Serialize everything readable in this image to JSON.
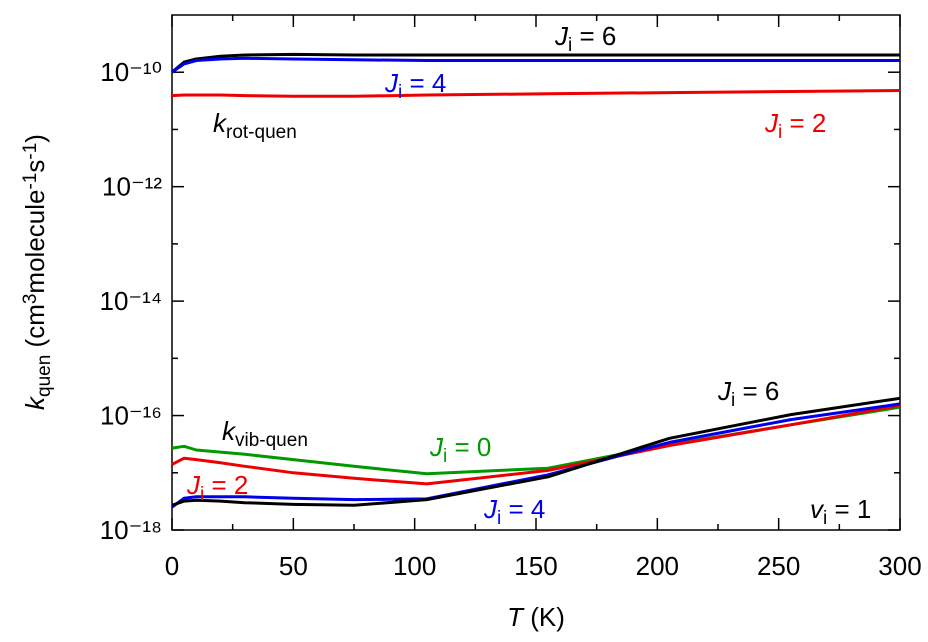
{
  "chart_data": {
    "type": "line",
    "x_label": [
      {
        "text": "T",
        "style": "italic"
      },
      {
        "text": " (K)",
        "style": "normal"
      }
    ],
    "y_label": [
      {
        "text": "k",
        "style": "italic"
      },
      {
        "text": "quen",
        "style": "sub"
      },
      {
        "text": " (cm",
        "style": "normal"
      },
      {
        "text": "3",
        "style": "sup"
      },
      {
        "text": "molecule",
        "style": "normal"
      },
      {
        "text": "-1",
        "style": "sup"
      },
      {
        "text": "s",
        "style": "normal"
      },
      {
        "text": "-1",
        "style": "sup"
      },
      {
        "text": ")",
        "style": "normal"
      }
    ],
    "x": [
      0,
      5,
      10,
      20,
      30,
      50,
      75,
      105,
      155,
      205,
      255,
      300
    ],
    "series": [
      {
        "color": "#000000",
        "values": [
          1e-10,
          1.5e-10,
          1.7e-10,
          1.9e-10,
          2e-10,
          2.05e-10,
          2e-10,
          2e-10,
          2e-10,
          2e-10,
          2e-10,
          2e-10
        ]
      },
      {
        "color": "#0000ee",
        "values": [
          1e-10,
          1.4e-10,
          1.6e-10,
          1.7e-10,
          1.75e-10,
          1.7e-10,
          1.65e-10,
          1.6e-10,
          1.6e-10,
          1.6e-10,
          1.6e-10,
          1.6e-10
        ]
      },
      {
        "color": "#ee0000",
        "values": [
          3.9e-11,
          4e-11,
          4e-11,
          4e-11,
          3.9e-11,
          3.8e-11,
          3.8e-11,
          4e-11,
          4.2e-11,
          4.4e-11,
          4.6e-11,
          4.8e-11
        ]
      },
      {
        "color": "#009900",
        "values": [
          2.7e-17,
          2.9e-17,
          2.5e-17,
          2.3e-17,
          2.1e-17,
          1.7e-17,
          1.3e-17,
          9.6e-18,
          1.2e-17,
          3.1e-17,
          6.9e-17,
          1.4e-16
        ]
      },
      {
        "color": "#ee0000",
        "values": [
          1.4e-17,
          1.8e-17,
          1.7e-17,
          1.5e-17,
          1.3e-17,
          1e-17,
          8e-18,
          6.4e-18,
          1.1e-17,
          3e-17,
          6.9e-17,
          1.5e-16
        ]
      },
      {
        "color": "#0000ee",
        "values": [
          2.5e-18,
          3.6e-18,
          3.8e-18,
          3.8e-18,
          3.8e-18,
          3.6e-18,
          3.4e-18,
          3.5e-18,
          9.2e-18,
          3.4e-17,
          8.5e-17,
          1.6e-16
        ]
      },
      {
        "color": "#000000",
        "values": [
          2.7e-18,
          3.2e-18,
          3.3e-18,
          3.2e-18,
          3e-18,
          2.8e-18,
          2.7e-18,
          3.4e-18,
          8.5e-18,
          4e-17,
          1.04e-16,
          2e-16
        ]
      }
    ],
    "xlim": [
      0,
      300
    ],
    "xticks": [
      0,
      50,
      100,
      150,
      200,
      250,
      300
    ],
    "minor_xticks": [
      25,
      75,
      125,
      175,
      225,
      275
    ],
    "ylim": [
      1e-18,
      1e-09
    ],
    "log_y": true,
    "yticks": [
      {
        "value": 1e-18,
        "label": "10⁻¹⁸"
      },
      {
        "value": 1e-16,
        "label": "10⁻¹⁶"
      },
      {
        "value": 1e-14,
        "label": "10⁻¹⁴"
      },
      {
        "value": 1e-12,
        "label": "10⁻¹²"
      },
      {
        "value": 1e-10,
        "label": "10⁻¹⁰"
      }
    ],
    "minor_yticks": [
      1e-17,
      1e-15,
      1e-13,
      1e-11
    ],
    "annotations": [
      {
        "parts": [
          "J",
          "i",
          " = 6"
        ],
        "color": "#000000"
      },
      {
        "parts": [
          "J",
          "i",
          " = 4"
        ],
        "color": "#0000ee"
      },
      {
        "parts": [
          "k",
          "rot-quen",
          ""
        ],
        "color": "#000000"
      },
      {
        "parts": [
          "J",
          "i",
          " = 2"
        ],
        "color": "#ee0000"
      },
      {
        "parts": [
          "k",
          "vib-quen",
          ""
        ],
        "color": "#000000"
      },
      {
        "parts": [
          "J",
          "i",
          " = 0"
        ],
        "color": "#009900"
      },
      {
        "parts": [
          "J",
          "i",
          " = 6"
        ],
        "color": "#000000"
      },
      {
        "parts": [
          "J",
          "i",
          " = 2"
        ],
        "color": "#ee0000"
      },
      {
        "parts": [
          "J",
          "i",
          " = 4"
        ],
        "color": "#0000ee"
      },
      {
        "parts": [
          "v",
          "i",
          " = 1"
        ],
        "color": "#000000"
      }
    ]
  }
}
